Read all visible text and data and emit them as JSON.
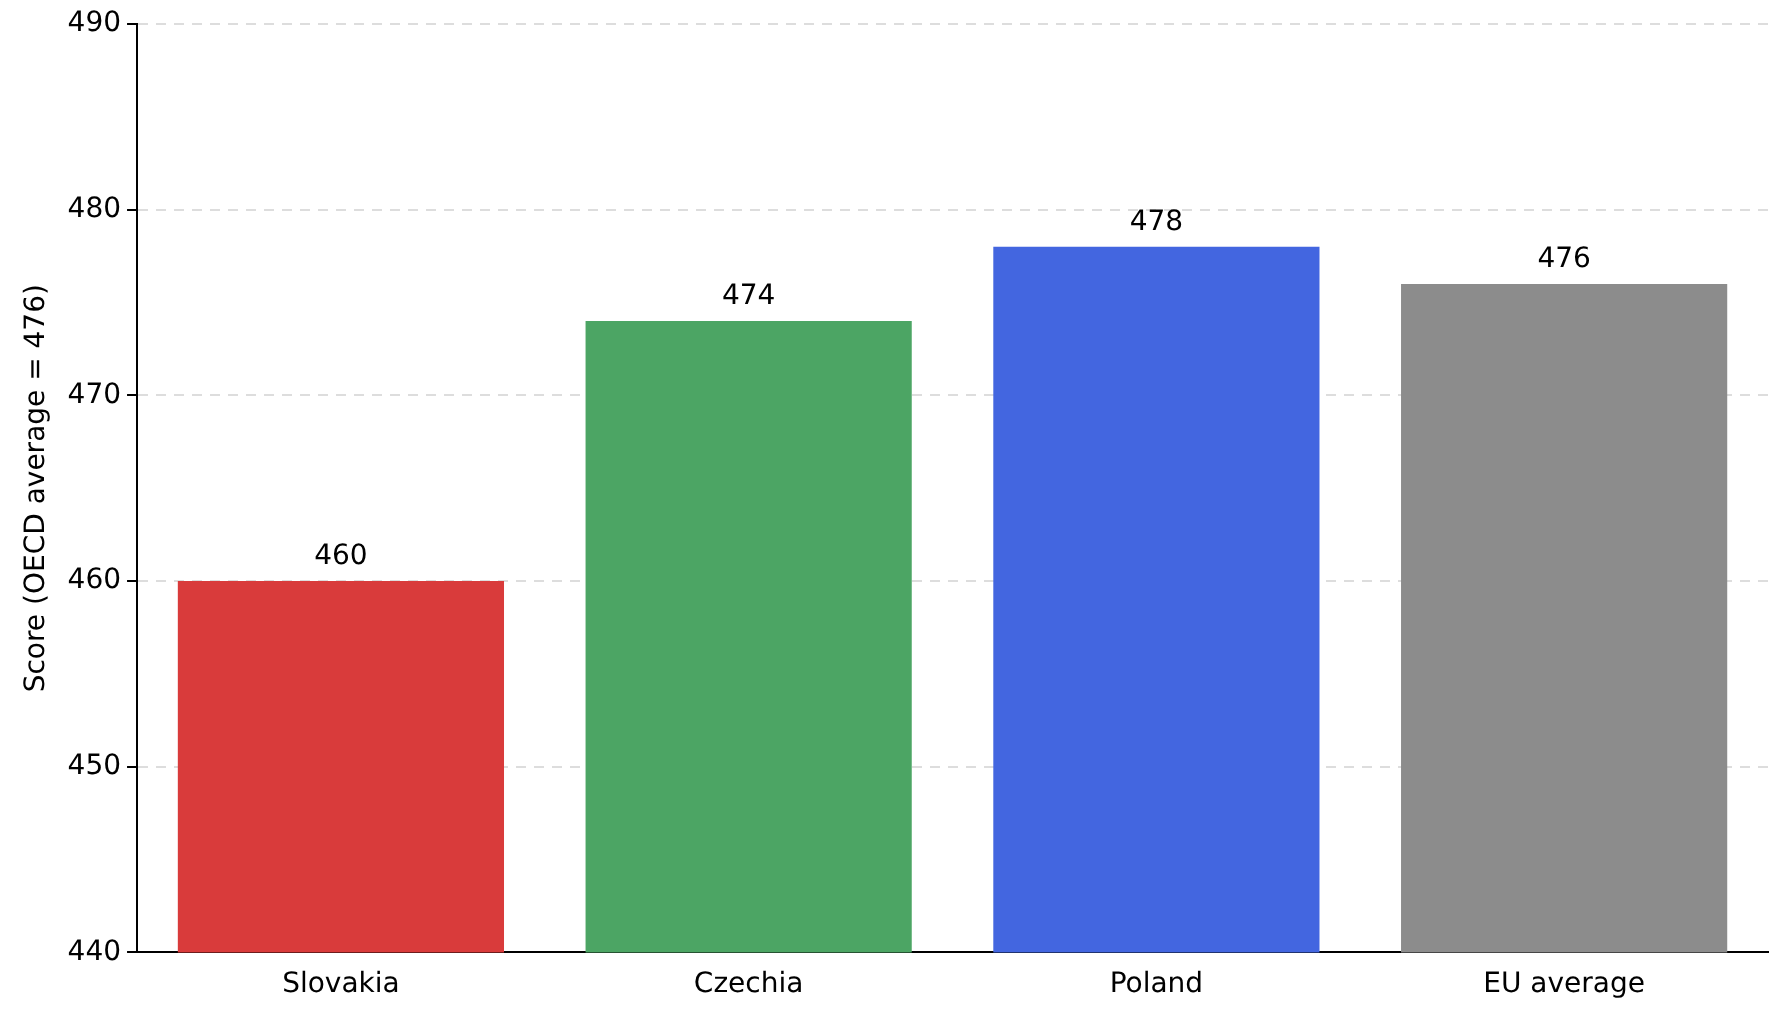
{
  "chart_data": {
    "type": "bar",
    "ylabel": "Score (OECD average = 476)",
    "categories": [
      "Slovakia",
      "Czechia",
      "Poland",
      "EU average"
    ],
    "values": [
      460,
      474,
      478,
      476
    ],
    "colors": [
      "#d93b3b",
      "#4ca564",
      "#4366e0",
      "#8c8c8c"
    ],
    "ylim": [
      440,
      490
    ],
    "yticks": [
      440,
      450,
      460,
      470,
      480,
      490
    ],
    "grid": "y",
    "data_labels": true,
    "legend": false
  }
}
